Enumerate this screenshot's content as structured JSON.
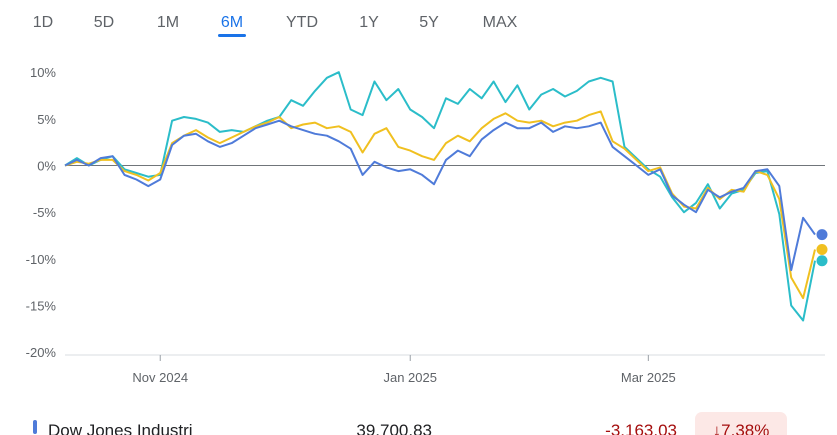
{
  "tabs": [
    {
      "label": "1D",
      "selected": false
    },
    {
      "label": "5D",
      "selected": false
    },
    {
      "label": "1M",
      "selected": false
    },
    {
      "label": "6M",
      "selected": true
    },
    {
      "label": "YTD",
      "selected": false
    },
    {
      "label": "1Y",
      "selected": false
    },
    {
      "label": "5Y",
      "selected": false
    },
    {
      "label": "MAX",
      "selected": false
    }
  ],
  "chart_data": {
    "type": "line",
    "categories": [
      null,
      null,
      null,
      null,
      null,
      null,
      null,
      null,
      "Nov 2024",
      null,
      null,
      null,
      null,
      null,
      null,
      null,
      null,
      null,
      null,
      null,
      null,
      null,
      null,
      null,
      null,
      null,
      null,
      null,
      null,
      "Jan 2025",
      null,
      null,
      null,
      null,
      null,
      null,
      null,
      null,
      null,
      null,
      null,
      null,
      null,
      null,
      null,
      null,
      null,
      null,
      null,
      "Mar 2025",
      null,
      null,
      null,
      null,
      null,
      null,
      null,
      null,
      null,
      null,
      null,
      null,
      null,
      null
    ],
    "ylim": [
      -20.3,
      11.2
    ],
    "yticks": [
      {
        "value": 10,
        "label": "10%"
      },
      {
        "value": 5,
        "label": "5%"
      },
      {
        "value": 0,
        "label": "0%"
      },
      {
        "value": -5,
        "label": "-5%"
      },
      {
        "value": -10,
        "label": "-10%"
      },
      {
        "value": -15,
        "label": "-15%"
      },
      {
        "value": -20,
        "label": "-20%"
      }
    ],
    "grid": false,
    "series": [
      {
        "color": "#4f7bd9",
        "values": [
          0,
          0.6,
          0,
          0.8,
          1,
          -1,
          -1.5,
          -2.2,
          -1.5,
          2.2,
          3.2,
          3.4,
          2.6,
          2,
          2.4,
          3.2,
          4,
          4.4,
          4.8,
          4.2,
          3.8,
          3.4,
          3.2,
          2.6,
          1.8,
          -1,
          0.4,
          -0.2,
          -0.6,
          -0.4,
          -1,
          -2,
          0.6,
          1.6,
          1,
          2.8,
          3.8,
          4.6,
          4,
          4,
          4.6,
          3.6,
          4.2,
          4,
          4.2,
          4.6,
          2,
          1,
          0,
          -1,
          -0.4,
          -3.2,
          -4.2,
          -5,
          -2.6,
          -3.4,
          -2.8,
          -2.4,
          -0.6,
          -0.4,
          -2.2,
          -11.2,
          -5.6,
          -7.4
        ]
      },
      {
        "color": "#f0c020",
        "values": [
          0,
          0.4,
          0.2,
          0.6,
          0.6,
          -0.6,
          -1,
          -1.6,
          -0.8,
          2.4,
          3.2,
          3.8,
          3,
          2.4,
          3,
          3.6,
          4.2,
          4.6,
          5.2,
          4,
          4.4,
          4.6,
          4,
          4.2,
          3.6,
          1.4,
          3.4,
          4,
          2,
          1.6,
          1,
          0.6,
          2.4,
          3.2,
          2.6,
          4,
          5,
          5.6,
          4.8,
          4.6,
          4.8,
          4.2,
          4.6,
          4.8,
          5.4,
          5.8,
          2.6,
          1.8,
          0.6,
          -0.6,
          -0.2,
          -3,
          -4.4,
          -4.6,
          -2.4,
          -3.6,
          -2.6,
          -2.8,
          -0.6,
          -1,
          -3.6,
          -12,
          -14.2,
          -9
        ]
      },
      {
        "color": "#2bbdc9",
        "values": [
          0,
          0.8,
          0,
          0.6,
          1,
          -0.4,
          -0.8,
          -1.2,
          -1,
          4.8,
          5.2,
          5,
          4.6,
          3.6,
          3.8,
          3.6,
          4.2,
          4.8,
          5.2,
          7,
          6.4,
          8,
          9.4,
          10,
          6,
          5.4,
          9,
          7,
          8.2,
          6,
          5.2,
          4,
          7.2,
          6.6,
          8.2,
          7.2,
          9,
          6.8,
          8.6,
          6,
          7.6,
          8.2,
          7.4,
          8,
          9,
          9.4,
          9,
          2,
          0.8,
          -0.4,
          -1.2,
          -3.4,
          -5,
          -4,
          -2,
          -4.6,
          -3,
          -2.6,
          -0.8,
          -0.6,
          -5.2,
          -15,
          -16.6,
          -10.2
        ]
      }
    ]
  },
  "summary": {
    "name": "Dow Jones Industri",
    "price": "39,700.83",
    "change": "-3,163.03",
    "percent": "↓7.38%"
  }
}
